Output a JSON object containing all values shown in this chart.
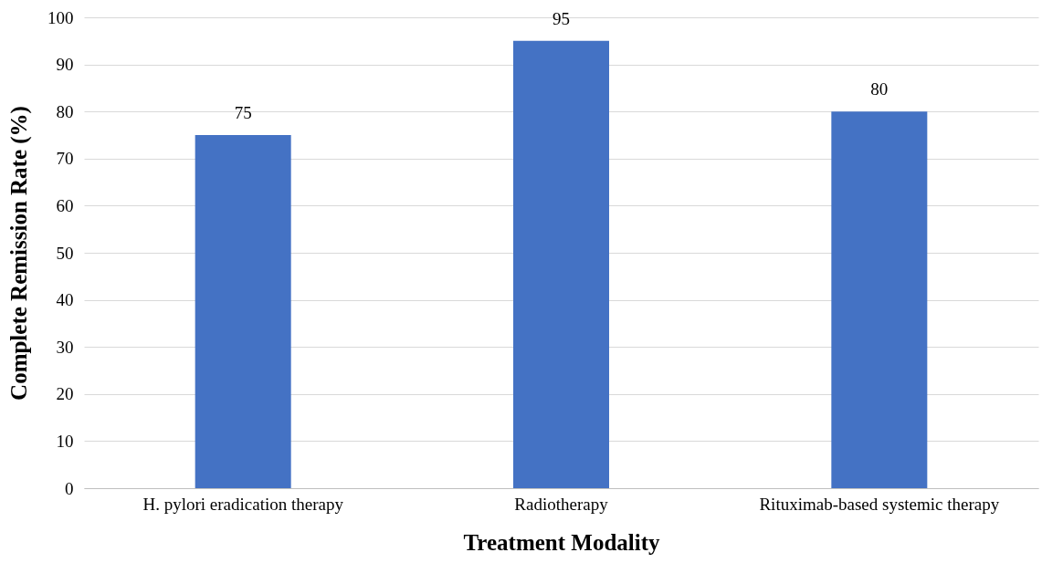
{
  "chart_data": {
    "type": "bar",
    "xlabel": "Treatment Modality",
    "ylabel": "Complete Remission Rate (%)",
    "categories": [
      "H. pylori eradication therapy",
      "Radiotherapy",
      "Rituximab-based systemic therapy"
    ],
    "values": [
      75,
      95,
      80
    ],
    "color": "#4472c4",
    "ylim": [
      0,
      100
    ],
    "yticks": [
      0,
      10,
      20,
      30,
      40,
      50,
      60,
      70,
      80,
      90,
      100
    ],
    "grid": "y",
    "data_labels": true
  }
}
